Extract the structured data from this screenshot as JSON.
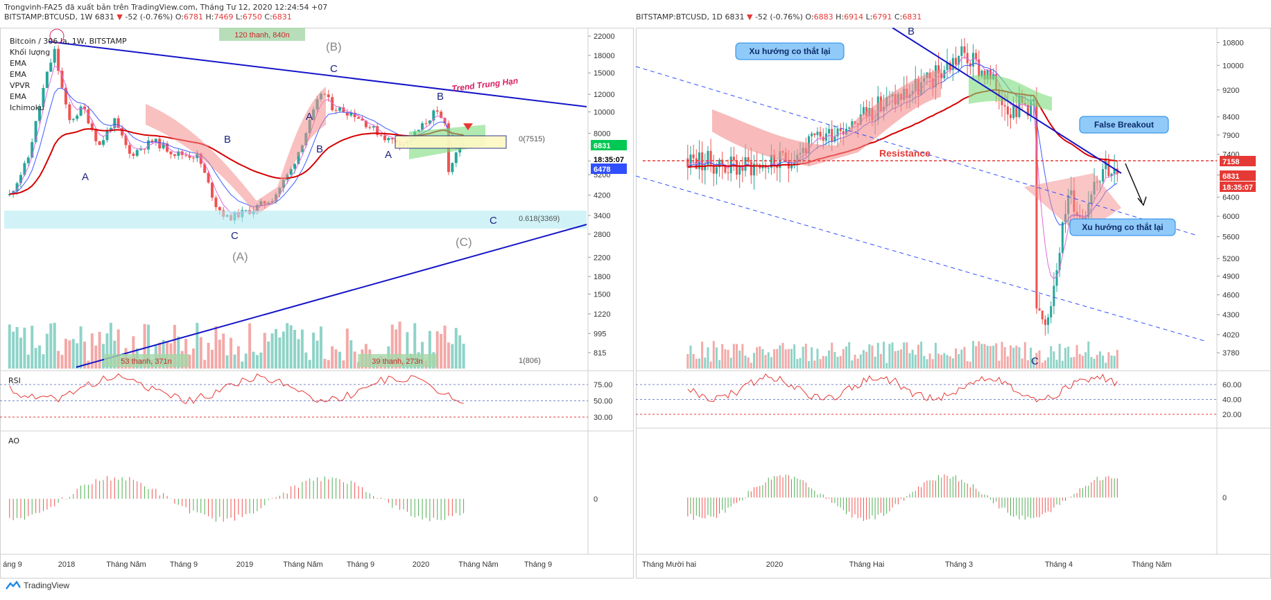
{
  "app": {
    "brand": "TradingView"
  },
  "header_left": {
    "line1": "Trongvinh-FA25 đã xuất bản trên TradingView.com, Tháng Tư 12, 2020 12:24:54 +07",
    "symbol": "BITSTAMP:BTCUSD, 1W 6831",
    "change": "-52 (-0.76%)",
    "ohlc": {
      "o": "6781",
      "h": "7469",
      "l": "6750",
      "c": "6831"
    }
  },
  "header_right": {
    "symbol": "BITSTAMP:BTCUSD, 1D 6831",
    "change": "-52 (-0.76%)",
    "ohlc": {
      "o": "6883",
      "h": "6914",
      "l": "6791",
      "c": "6831"
    }
  },
  "legend_left": [
    "Bitcoin / 306 la, 1W, BITSTAMP",
    "Khối lượng",
    "EMA",
    "EMA",
    "VPVR",
    "EMA",
    "Ichimoku"
  ],
  "colors": {
    "up": "#26a69a",
    "down": "#ef5350",
    "trend": "#1414c8",
    "ema_red": "#d50000",
    "price_tag": "#00c853",
    "cloud_red": "#f48c8c",
    "cloud_green": "#7bdc7b",
    "band": "#b2ebf2"
  },
  "chart_data": [
    {
      "panel": "weekly",
      "type": "line",
      "x_labels": [
        "áng 9",
        "2018",
        "Tháng Năm",
        "Tháng 9",
        "2019",
        "Tháng Năm",
        "Tháng 9",
        "2020",
        "Tháng Năm",
        "Tháng 9"
      ],
      "y_ticks": [
        "22000",
        "18000",
        "15000",
        "12000",
        "10000",
        "8000",
        "6000",
        "5200",
        "4200",
        "3400",
        "2800",
        "2200",
        "1800",
        "1500",
        "1220",
        "995",
        "815"
      ],
      "scale": "log",
      "ylim": [
        700,
        23000
      ],
      "series": [
        {
          "values": [
            {
              "x": 2017.75,
              "y": 4200
            },
            {
              "x": 2017.85,
              "y": 6000
            },
            {
              "x": 2017.95,
              "y": 14000
            },
            {
              "x": 2018.0,
              "y": 19000
            },
            {
              "x": 2018.08,
              "y": 9000
            },
            {
              "x": 2018.16,
              "y": 10500
            },
            {
              "x": 2018.25,
              "y": 7000
            },
            {
              "x": 2018.33,
              "y": 9200
            },
            {
              "x": 2018.42,
              "y": 6400
            },
            {
              "x": 2018.55,
              "y": 7400
            },
            {
              "x": 2018.67,
              "y": 6500
            },
            {
              "x": 2018.8,
              "y": 6300
            },
            {
              "x": 2018.9,
              "y": 3800
            },
            {
              "x": 2018.96,
              "y": 3300
            },
            {
              "x": 2019.1,
              "y": 3600
            },
            {
              "x": 2019.22,
              "y": 4100
            },
            {
              "x": 2019.32,
              "y": 5500
            },
            {
              "x": 2019.42,
              "y": 8800
            },
            {
              "x": 2019.49,
              "y": 12500
            },
            {
              "x": 2019.55,
              "y": 10500
            },
            {
              "x": 2019.67,
              "y": 9800
            },
            {
              "x": 2019.78,
              "y": 8300
            },
            {
              "x": 2019.86,
              "y": 7500
            },
            {
              "x": 2019.96,
              "y": 7200
            },
            {
              "x": 2020.06,
              "y": 8800
            },
            {
              "x": 2020.12,
              "y": 10000
            },
            {
              "x": 2020.18,
              "y": 8700
            },
            {
              "x": 2020.2,
              "y": 5000
            },
            {
              "x": 2020.23,
              "y": 6600
            },
            {
              "x": 2020.28,
              "y": 6831
            }
          ]
        }
      ],
      "price_tags": [
        "6831",
        "18:35:07",
        "6478"
      ],
      "annotations": {
        "wave_labels": [
          "(B)",
          "C",
          "A",
          "B",
          "B",
          "A",
          "B",
          "A",
          "C",
          "(A)",
          "(C)",
          "C"
        ],
        "trend_label": "Trend Trung Hạn",
        "fib_0": "0(7515)",
        "fib_0618": "0.618(3369)",
        "fib_1": "1(806)",
        "range_boxes": [
          "120 thanh, 840n",
          "53 thanh, 371n",
          "39 thanh, 273n"
        ]
      },
      "rsi": {
        "label": "RSI",
        "ticks": [
          "75.00",
          "50.00",
          "30.00"
        ]
      },
      "ao": {
        "label": "AO",
        "ticks": [
          "0"
        ]
      }
    },
    {
      "panel": "daily",
      "type": "line",
      "x_labels": [
        "Tháng Mười hai",
        "2020",
        "Tháng Hai",
        "Tháng 3",
        "Tháng 4",
        "Tháng Năm"
      ],
      "y_ticks": [
        "10800",
        "10000",
        "9200",
        "8400",
        "7900",
        "7400",
        "6900",
        "6400",
        "6000",
        "5600",
        "5200",
        "4900",
        "4600",
        "4300",
        "4020",
        "3780"
      ],
      "scale": "log",
      "ylim": [
        3600,
        11200
      ],
      "series": [
        {
          "values": [
            {
              "x": 2019.92,
              "y": 7300
            },
            {
              "x": 2019.96,
              "y": 7100
            },
            {
              "x": 2020.0,
              "y": 7200
            },
            {
              "x": 2020.04,
              "y": 8000
            },
            {
              "x": 2020.08,
              "y": 8700
            },
            {
              "x": 2020.12,
              "y": 9400
            },
            {
              "x": 2020.15,
              "y": 10400
            },
            {
              "x": 2020.17,
              "y": 9700
            },
            {
              "x": 2020.19,
              "y": 8700
            },
            {
              "x": 2020.21,
              "y": 8800
            },
            {
              "x": 2020.2,
              "y": 5000
            },
            {
              "x": 2020.22,
              "y": 4000
            },
            {
              "x": 2020.23,
              "y": 5300
            },
            {
              "x": 2020.24,
              "y": 6500
            },
            {
              "x": 2020.25,
              "y": 5900
            },
            {
              "x": 2020.26,
              "y": 6800
            },
            {
              "x": 2020.27,
              "y": 7200
            },
            {
              "x": 2020.28,
              "y": 6831
            }
          ]
        }
      ],
      "price_tags": [
        "7158",
        "6831",
        "18:35:07"
      ],
      "annotations": {
        "wave_labels": [
          "B",
          "C"
        ],
        "callouts": [
          "Xu hướng co thắt lại",
          "False Breakout",
          "Xu hướng co thắt lại"
        ],
        "resistance": "Resistance"
      },
      "rsi": {
        "label": "",
        "ticks": [
          "60.00",
          "40.00",
          "20.00"
        ]
      },
      "ao": {
        "label": "",
        "ticks": [
          "0"
        ]
      }
    }
  ]
}
